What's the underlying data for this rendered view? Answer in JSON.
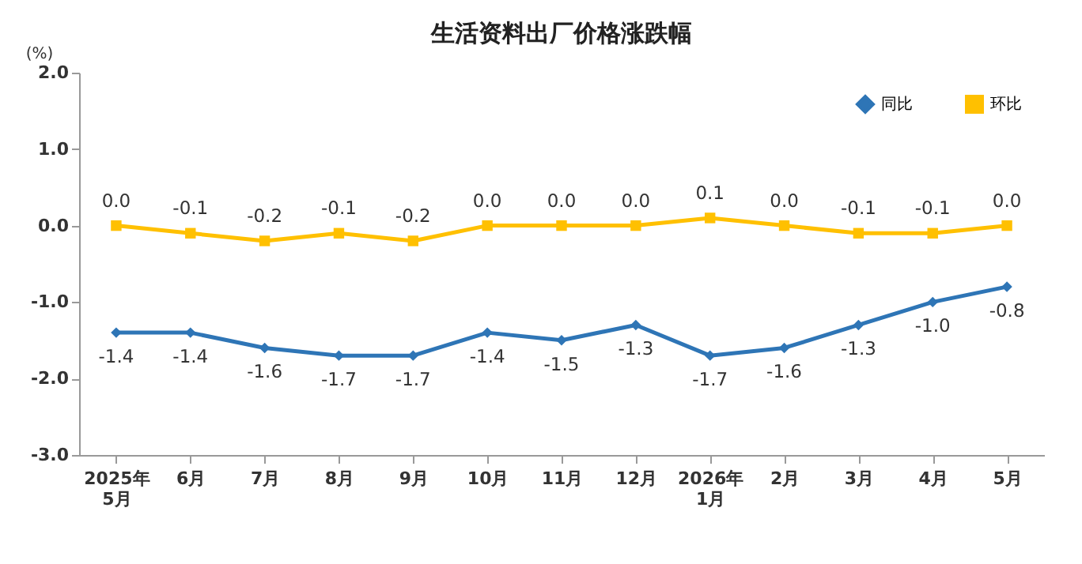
{
  "chart_data": {
    "type": "line",
    "title": "生活资料出厂价格涨跌幅",
    "ylabel": "(%)",
    "categories": [
      "2025年\n5月",
      "6月",
      "7月",
      "8月",
      "9月",
      "10月",
      "11月",
      "12月",
      "2026年\n1月",
      "2月",
      "3月",
      "4月",
      "5月"
    ],
    "series": [
      {
        "name": "同比",
        "color": "#2e75b6",
        "marker": "diamond",
        "values": [
          -1.4,
          -1.4,
          -1.6,
          -1.7,
          -1.7,
          -1.4,
          -1.5,
          -1.3,
          -1.7,
          -1.6,
          -1.3,
          -1.0,
          -0.8
        ],
        "value_labels": [
          "-1.4",
          "-1.4",
          "-1.6",
          "-1.7",
          "-1.7",
          "-1.4",
          "-1.5",
          "-1.3",
          "-1.7",
          "-1.6",
          "-1.3",
          "-1.0",
          "-0.8"
        ]
      },
      {
        "name": "环比",
        "color": "#ffc000",
        "marker": "square",
        "values": [
          0.0,
          -0.1,
          -0.2,
          -0.1,
          -0.2,
          0.0,
          0.0,
          0.0,
          0.1,
          0.0,
          -0.1,
          -0.1,
          0.0
        ],
        "value_labels": [
          "0.0",
          "-0.1",
          "-0.2",
          "-0.1",
          "-0.2",
          "0.0",
          "0.0",
          "0.0",
          "0.1",
          "0.0",
          "-0.1",
          "-0.1",
          "0.0"
        ]
      }
    ],
    "ylim": [
      -3.0,
      2.0
    ],
    "yticks": [
      {
        "value": 2,
        "label": "2.0"
      },
      {
        "value": 1,
        "label": "1.0"
      },
      {
        "value": 0,
        "label": "0.0"
      },
      {
        "value": -1,
        "label": "-1.0"
      },
      {
        "value": -2,
        "label": "-2.0"
      },
      {
        "value": -3,
        "label": "-3.0"
      }
    ],
    "grid": false,
    "legend": "top right",
    "line_style": "solid"
  }
}
